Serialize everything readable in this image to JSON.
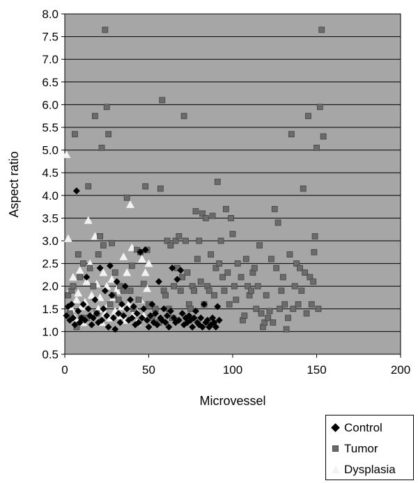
{
  "chart_data": {
    "type": "scatter",
    "xlabel": "Microvessel",
    "ylabel": "Aspect ratio",
    "xlim": [
      0,
      200
    ],
    "ylim": [
      0.5,
      8.0
    ],
    "x_ticks": [
      "0",
      "50",
      "100",
      "150",
      "200"
    ],
    "y_ticks": [
      "0.5",
      "1.0",
      "1.5",
      "2.0",
      "2.5",
      "3.0",
      "3.5",
      "4.0",
      "4.5",
      "5.0",
      "5.5",
      "6.0",
      "6.5",
      "7.0",
      "7.5",
      "8.0"
    ],
    "grid": "horizontal",
    "legend_position": "bottom-right",
    "plot_background": "#a6a6a6",
    "series": [
      {
        "name": "Control",
        "marker": "diamond",
        "color": "#000000",
        "points": [
          [
            1,
            1.35
          ],
          [
            2,
            1.55
          ],
          [
            3,
            1.25
          ],
          [
            4,
            1.6
          ],
          [
            5,
            1.3
          ],
          [
            6,
            1.15
          ],
          [
            7,
            4.1
          ],
          [
            8,
            1.45
          ],
          [
            9,
            1.2
          ],
          [
            10,
            1.3
          ],
          [
            11,
            1.6
          ],
          [
            12,
            1.25
          ],
          [
            13,
            2.2
          ],
          [
            14,
            1.5
          ],
          [
            15,
            1.35
          ],
          [
            16,
            1.15
          ],
          [
            17,
            1.3
          ],
          [
            18,
            1.7
          ],
          [
            19,
            1.4
          ],
          [
            20,
            1.2
          ],
          [
            21,
            2.4
          ],
          [
            22,
            1.25
          ],
          [
            23,
            1.5
          ],
          [
            24,
            1.9
          ],
          [
            25,
            1.35
          ],
          [
            26,
            1.1
          ],
          [
            27,
            2.45
          ],
          [
            28,
            1.8
          ],
          [
            29,
            1.3
          ],
          [
            30,
            1.05
          ],
          [
            31,
            2.1
          ],
          [
            32,
            1.4
          ],
          [
            33,
            1.2
          ],
          [
            34,
            1.6
          ],
          [
            35,
            1.35
          ],
          [
            36,
            2.0
          ],
          [
            37,
            1.5
          ],
          [
            38,
            1.25
          ],
          [
            39,
            1.7
          ],
          [
            40,
            1.3
          ],
          [
            41,
            1.55
          ],
          [
            42,
            1.15
          ],
          [
            43,
            1.4
          ],
          [
            44,
            1.2
          ],
          [
            45,
            2.75
          ],
          [
            46,
            1.3
          ],
          [
            47,
            1.5
          ],
          [
            48,
            2.8
          ],
          [
            49,
            1.25
          ],
          [
            50,
            1.1
          ],
          [
            51,
            1.35
          ],
          [
            52,
            1.6
          ],
          [
            53,
            1.2
          ],
          [
            54,
            1.4
          ],
          [
            55,
            1.15
          ],
          [
            56,
            2.1
          ],
          [
            57,
            1.3
          ],
          [
            58,
            1.25
          ],
          [
            59,
            1.5
          ],
          [
            60,
            1.2
          ],
          [
            61,
            1.35
          ],
          [
            62,
            1.1
          ],
          [
            63,
            1.45
          ],
          [
            64,
            2.4
          ],
          [
            65,
            1.3
          ],
          [
            66,
            1.2
          ],
          [
            67,
            2.15
          ],
          [
            68,
            1.25
          ],
          [
            69,
            2.35
          ],
          [
            70,
            1.4
          ],
          [
            71,
            1.15
          ],
          [
            72,
            1.3
          ],
          [
            73,
            1.2
          ],
          [
            74,
            1.35
          ],
          [
            75,
            1.25
          ],
          [
            76,
            1.1
          ],
          [
            77,
            1.3
          ],
          [
            78,
            1.45
          ],
          [
            79,
            1.2
          ],
          [
            80,
            1.15
          ],
          [
            81,
            1.3
          ],
          [
            82,
            1.1
          ],
          [
            83,
            1.6
          ],
          [
            84,
            1.2
          ],
          [
            85,
            1.25
          ],
          [
            86,
            1.1
          ],
          [
            87,
            1.15
          ],
          [
            88,
            1.3
          ],
          [
            89,
            1.2
          ],
          [
            90,
            1.1
          ],
          [
            91,
            1.55
          ],
          [
            92,
            1.25
          ]
        ]
      },
      {
        "name": "Tumor",
        "marker": "square",
        "color": "#6b6b6b",
        "points": [
          [
            2,
            1.8
          ],
          [
            3,
            1.4
          ],
          [
            4,
            1.9
          ],
          [
            5,
            2.0
          ],
          [
            6,
            5.35
          ],
          [
            7,
            1.1
          ],
          [
            8,
            2.7
          ],
          [
            9,
            2.2
          ],
          [
            10,
            1.3
          ],
          [
            11,
            2.5
          ],
          [
            13,
            1.3
          ],
          [
            14,
            4.2
          ],
          [
            15,
            2.4
          ],
          [
            17,
            2.0
          ],
          [
            18,
            5.75
          ],
          [
            19,
            1.4
          ],
          [
            20,
            2.7
          ],
          [
            21,
            3.1
          ],
          [
            22,
            5.05
          ],
          [
            23,
            2.9
          ],
          [
            24,
            7.65
          ],
          [
            25,
            5.95
          ],
          [
            26,
            5.35
          ],
          [
            27,
            1.6
          ],
          [
            28,
            2.95
          ],
          [
            29,
            1.8
          ],
          [
            30,
            2.3
          ],
          [
            32,
            1.7
          ],
          [
            33,
            2.0
          ],
          [
            35,
            1.9
          ],
          [
            37,
            3.95
          ],
          [
            39,
            1.9
          ],
          [
            40,
            2.45
          ],
          [
            41,
            1.5
          ],
          [
            43,
            2.8
          ],
          [
            44,
            1.7
          ],
          [
            45,
            2.75
          ],
          [
            47,
            2.05
          ],
          [
            48,
            4.2
          ],
          [
            49,
            2.8
          ],
          [
            50,
            1.6
          ],
          [
            52,
            1.3
          ],
          [
            54,
            1.5
          ],
          [
            56,
            1.2
          ],
          [
            57,
            4.15
          ],
          [
            58,
            6.1
          ],
          [
            59,
            1.9
          ],
          [
            60,
            1.8
          ],
          [
            61,
            3.0
          ],
          [
            62,
            1.5
          ],
          [
            63,
            2.9
          ],
          [
            64,
            1.3
          ],
          [
            65,
            2.0
          ],
          [
            66,
            3.0
          ],
          [
            67,
            2.4
          ],
          [
            68,
            3.1
          ],
          [
            69,
            1.9
          ],
          [
            70,
            2.2
          ],
          [
            71,
            5.75
          ],
          [
            72,
            3.0
          ],
          [
            73,
            2.3
          ],
          [
            74,
            1.6
          ],
          [
            75,
            1.5
          ],
          [
            76,
            2.0
          ],
          [
            77,
            1.9
          ],
          [
            78,
            3.65
          ],
          [
            79,
            2.6
          ],
          [
            80,
            3.0
          ],
          [
            81,
            2.1
          ],
          [
            82,
            3.6
          ],
          [
            83,
            1.6
          ],
          [
            84,
            3.5
          ],
          [
            85,
            2.0
          ],
          [
            86,
            1.9
          ],
          [
            87,
            2.7
          ],
          [
            88,
            3.55
          ],
          [
            89,
            1.8
          ],
          [
            90,
            2.4
          ],
          [
            91,
            4.3
          ],
          [
            92,
            2.5
          ],
          [
            93,
            3.0
          ],
          [
            94,
            2.2
          ],
          [
            95,
            1.9
          ],
          [
            96,
            3.7
          ],
          [
            97,
            2.3
          ],
          [
            98,
            1.6
          ],
          [
            99,
            3.5
          ],
          [
            100,
            3.15
          ],
          [
            101,
            2.0
          ],
          [
            102,
            1.7
          ],
          [
            103,
            2.5
          ],
          [
            105,
            2.2
          ],
          [
            106,
            1.25
          ],
          [
            107,
            1.35
          ],
          [
            108,
            2.6
          ],
          [
            109,
            2.0
          ],
          [
            110,
            1.8
          ],
          [
            111,
            1.9
          ],
          [
            112,
            2.3
          ],
          [
            113,
            2.4
          ],
          [
            114,
            1.5
          ],
          [
            115,
            2.0
          ],
          [
            116,
            2.9
          ],
          [
            117,
            1.4
          ],
          [
            118,
            1.1
          ],
          [
            119,
            1.2
          ],
          [
            120,
            1.8
          ],
          [
            121,
            1.3
          ],
          [
            122,
            1.45
          ],
          [
            123,
            2.6
          ],
          [
            124,
            1.2
          ],
          [
            125,
            3.7
          ],
          [
            126,
            2.4
          ],
          [
            127,
            3.4
          ],
          [
            128,
            1.5
          ],
          [
            129,
            1.9
          ],
          [
            130,
            2.2
          ],
          [
            131,
            1.6
          ],
          [
            132,
            1.05
          ],
          [
            133,
            1.3
          ],
          [
            134,
            2.7
          ],
          [
            135,
            5.35
          ],
          [
            136,
            1.5
          ],
          [
            137,
            2.0
          ],
          [
            138,
            2.5
          ],
          [
            139,
            1.6
          ],
          [
            140,
            2.4
          ],
          [
            141,
            1.9
          ],
          [
            142,
            4.15
          ],
          [
            143,
            2.3
          ],
          [
            144,
            1.4
          ],
          [
            145,
            5.75
          ],
          [
            146,
            2.2
          ],
          [
            147,
            1.6
          ],
          [
            148,
            2.1
          ],
          [
            149,
            3.1
          ],
          [
            150,
            5.05
          ],
          [
            151,
            1.5
          ],
          [
            152,
            5.95
          ],
          [
            153,
            7.65
          ],
          [
            154,
            5.3
          ],
          [
            148.5,
            2.75
          ]
        ]
      },
      {
        "name": "Dysplasia",
        "marker": "triangle",
        "color": "#f2f2f2",
        "points": [
          [
            1,
            4.9
          ],
          [
            2,
            3.05
          ],
          [
            3,
            1.9
          ],
          [
            4,
            1.5
          ],
          [
            5,
            2.2
          ],
          [
            6,
            1.3
          ],
          [
            7,
            1.7
          ],
          [
            8,
            1.85
          ],
          [
            9,
            2.35
          ],
          [
            10,
            1.55
          ],
          [
            11,
            1.2
          ],
          [
            12,
            1.65
          ],
          [
            13,
            2.1
          ],
          [
            14,
            3.45
          ],
          [
            15,
            2.5
          ],
          [
            16,
            1.8
          ],
          [
            17,
            1.35
          ],
          [
            18,
            3.1
          ],
          [
            19,
            2.05
          ],
          [
            20,
            1.5
          ],
          [
            21,
            1.75
          ],
          [
            22,
            1.2
          ],
          [
            23,
            2.3
          ],
          [
            24,
            1.4
          ],
          [
            25,
            2.0
          ],
          [
            26,
            1.6
          ],
          [
            27,
            1.3
          ],
          [
            28,
            2.15
          ],
          [
            29,
            1.75
          ],
          [
            30,
            1.45
          ],
          [
            31,
            1.9
          ],
          [
            32,
            2.0
          ],
          [
            33,
            1.35
          ],
          [
            34,
            1.55
          ],
          [
            35,
            2.65
          ],
          [
            36,
            1.25
          ],
          [
            37,
            2.3
          ],
          [
            38,
            1.6
          ],
          [
            39,
            3.8
          ],
          [
            40,
            2.85
          ],
          [
            41,
            1.4
          ],
          [
            42,
            1.5
          ],
          [
            43,
            1.2
          ],
          [
            44,
            2.8
          ],
          [
            45,
            1.7
          ],
          [
            46,
            2.6
          ],
          [
            47,
            1.35
          ],
          [
            48,
            2.3
          ],
          [
            49,
            1.95
          ],
          [
            50,
            2.5
          ]
        ]
      }
    ]
  }
}
